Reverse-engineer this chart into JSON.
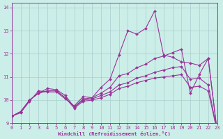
{
  "bg_color": "#cceee8",
  "line_color": "#993399",
  "grid_color": "#aacccc",
  "xlabel": "Windchill (Refroidissement éolien,°C)",
  "xlim": [
    0,
    23
  ],
  "ylim": [
    9.0,
    14.2
  ],
  "yticks": [
    9,
    10,
    11,
    12,
    13,
    14
  ],
  "xticks": [
    0,
    1,
    2,
    3,
    4,
    5,
    6,
    7,
    8,
    9,
    10,
    11,
    12,
    13,
    14,
    15,
    16,
    17,
    18,
    19,
    20,
    21,
    22,
    23
  ],
  "s1_y": [
    9.3,
    9.45,
    9.95,
    10.4,
    10.35,
    10.35,
    10.05,
    9.75,
    10.15,
    10.1,
    10.55,
    10.9,
    11.95,
    13.0,
    12.85,
    13.1,
    13.85,
    11.95,
    11.85,
    11.65,
    11.6,
    11.5,
    11.8,
    8.65
  ],
  "s2_y": [
    9.3,
    9.5,
    10.0,
    10.3,
    10.5,
    10.45,
    10.2,
    9.7,
    10.05,
    10.1,
    10.3,
    10.55,
    11.05,
    11.15,
    11.4,
    11.55,
    11.8,
    11.9,
    12.05,
    12.2,
    10.3,
    11.1,
    11.8,
    8.65
  ],
  "s3_y": [
    9.3,
    9.5,
    10.0,
    10.3,
    10.4,
    10.4,
    10.1,
    9.7,
    10.0,
    10.05,
    10.2,
    10.35,
    10.65,
    10.75,
    10.95,
    11.05,
    11.2,
    11.3,
    11.4,
    11.45,
    10.9,
    10.95,
    10.65,
    8.65
  ],
  "s4_y": [
    9.3,
    9.5,
    10.0,
    10.3,
    10.4,
    10.4,
    10.1,
    9.65,
    9.95,
    10.0,
    10.1,
    10.25,
    10.5,
    10.6,
    10.75,
    10.85,
    10.95,
    11.0,
    11.05,
    11.1,
    10.55,
    10.6,
    10.4,
    8.65
  ]
}
